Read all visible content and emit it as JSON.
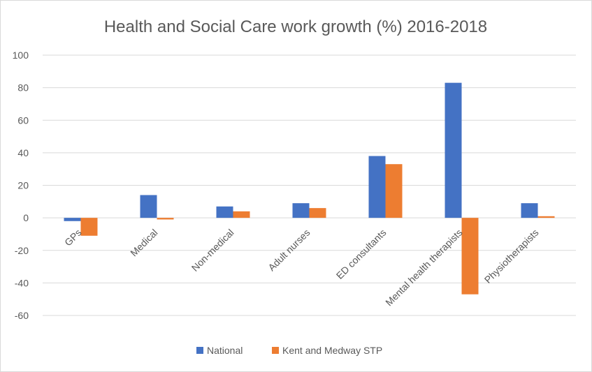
{
  "chart_data": {
    "type": "bar",
    "title": "Health and Social Care work growth (%) 2016-2018",
    "xlabel": "",
    "ylabel": "",
    "ylim": [
      -60,
      100
    ],
    "ytick_step": 20,
    "ytick_labels": [
      "100",
      "80",
      "60",
      "40",
      "20",
      "0",
      "-20",
      "-40",
      "-60"
    ],
    "categories": [
      "GPs",
      "Medical",
      "Non-medical",
      "Adult nurses",
      "ED consultants",
      "Mental health therapists",
      "Physiotherapists"
    ],
    "series": [
      {
        "name": "National",
        "color": "#4472c4",
        "values": [
          -2,
          14,
          7,
          9,
          38,
          83,
          9
        ]
      },
      {
        "name": "Kent and Medway STP",
        "color": "#ed7d31",
        "values": [
          -11,
          -1,
          4,
          6,
          33,
          -47,
          1
        ]
      }
    ],
    "grid": true,
    "legend_position": "bottom"
  }
}
